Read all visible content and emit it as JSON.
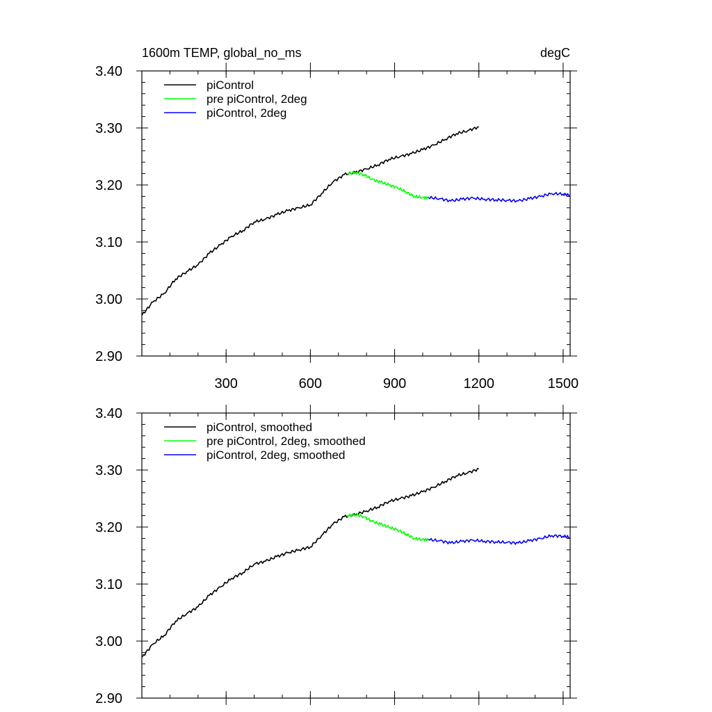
{
  "chart_data": [
    {
      "type": "line",
      "title_left": "1600m TEMP, global_no_ms",
      "title_right": "degC",
      "xlim": [
        0,
        1525
      ],
      "ylim": [
        2.9,
        3.4
      ],
      "xticks": [
        300,
        600,
        900,
        1200,
        1500
      ],
      "xtick_labels": [
        "300",
        "600",
        "900",
        "1200",
        "1500"
      ],
      "yticks": [
        2.9,
        3.0,
        3.1,
        3.2,
        3.3,
        3.4
      ],
      "ytick_labels": [
        "2.90",
        "3.00",
        "3.10",
        "3.20",
        "3.30",
        "3.40"
      ],
      "legend_position": "top-left",
      "series": [
        {
          "name": "piControl",
          "color": "#000000",
          "x": [
            1,
            40,
            80,
            120,
            160,
            200,
            240,
            280,
            320,
            360,
            400,
            440,
            480,
            520,
            560,
            600,
            640,
            680,
            720,
            760,
            800,
            840,
            880,
            920,
            960,
            1000,
            1040,
            1080,
            1120,
            1160,
            1200
          ],
          "y": [
            2.972,
            2.995,
            3.01,
            3.035,
            3.048,
            3.06,
            3.08,
            3.095,
            3.11,
            3.12,
            3.135,
            3.14,
            3.148,
            3.155,
            3.16,
            3.165,
            3.185,
            3.205,
            3.218,
            3.222,
            3.228,
            3.235,
            3.245,
            3.25,
            3.255,
            3.262,
            3.27,
            3.28,
            3.29,
            3.295,
            3.302
          ]
        },
        {
          "name": "pre piControl, 2deg",
          "color": "#00ff00",
          "x": [
            730,
            760,
            790,
            820,
            850,
            880,
            910,
            940,
            970,
            1000,
            1020
          ],
          "y": [
            3.22,
            3.222,
            3.218,
            3.21,
            3.205,
            3.2,
            3.195,
            3.188,
            3.18,
            3.178,
            3.178
          ]
        },
        {
          "name": "piControl, 2deg",
          "color": "#0000ff",
          "x": [
            1020,
            1060,
            1100,
            1140,
            1180,
            1220,
            1260,
            1300,
            1340,
            1380,
            1420,
            1460,
            1500,
            1525
          ],
          "y": [
            3.178,
            3.176,
            3.172,
            3.175,
            3.177,
            3.175,
            3.174,
            3.173,
            3.172,
            3.176,
            3.18,
            3.185,
            3.184,
            3.182
          ]
        }
      ]
    },
    {
      "type": "line",
      "xlim": [
        0,
        1525
      ],
      "ylim": [
        2.9,
        3.4
      ],
      "xticks": [
        300,
        600,
        900,
        1200,
        1500
      ],
      "xtick_labels": [],
      "yticks": [
        2.9,
        3.0,
        3.1,
        3.2,
        3.3,
        3.4
      ],
      "ytick_labels": [
        "2.90",
        "3.00",
        "3.10",
        "3.20",
        "3.30",
        "3.40"
      ],
      "legend_position": "top-left",
      "series": [
        {
          "name": "piControl, smoothed",
          "color": "#000000",
          "x": [
            1,
            40,
            80,
            120,
            160,
            200,
            240,
            280,
            320,
            360,
            400,
            440,
            480,
            520,
            560,
            600,
            640,
            680,
            720,
            760,
            800,
            840,
            880,
            920,
            960,
            1000,
            1040,
            1080,
            1120,
            1160,
            1200
          ],
          "y": [
            2.972,
            2.995,
            3.01,
            3.035,
            3.048,
            3.06,
            3.08,
            3.095,
            3.11,
            3.12,
            3.135,
            3.14,
            3.148,
            3.155,
            3.16,
            3.165,
            3.185,
            3.205,
            3.218,
            3.222,
            3.228,
            3.235,
            3.245,
            3.25,
            3.255,
            3.262,
            3.27,
            3.28,
            3.29,
            3.295,
            3.302
          ]
        },
        {
          "name": "pre piControl, 2deg, smoothed",
          "color": "#00ff00",
          "x": [
            730,
            760,
            790,
            820,
            850,
            880,
            910,
            940,
            970,
            1000,
            1020
          ],
          "y": [
            3.22,
            3.222,
            3.218,
            3.21,
            3.205,
            3.2,
            3.195,
            3.188,
            3.18,
            3.178,
            3.178
          ]
        },
        {
          "name": "piControl, 2deg, smoothed",
          "color": "#0000ff",
          "x": [
            1020,
            1060,
            1100,
            1140,
            1180,
            1220,
            1260,
            1300,
            1340,
            1380,
            1420,
            1460,
            1500,
            1525
          ],
          "y": [
            3.178,
            3.176,
            3.172,
            3.175,
            3.177,
            3.175,
            3.174,
            3.173,
            3.172,
            3.176,
            3.18,
            3.185,
            3.184,
            3.182
          ]
        }
      ]
    }
  ]
}
